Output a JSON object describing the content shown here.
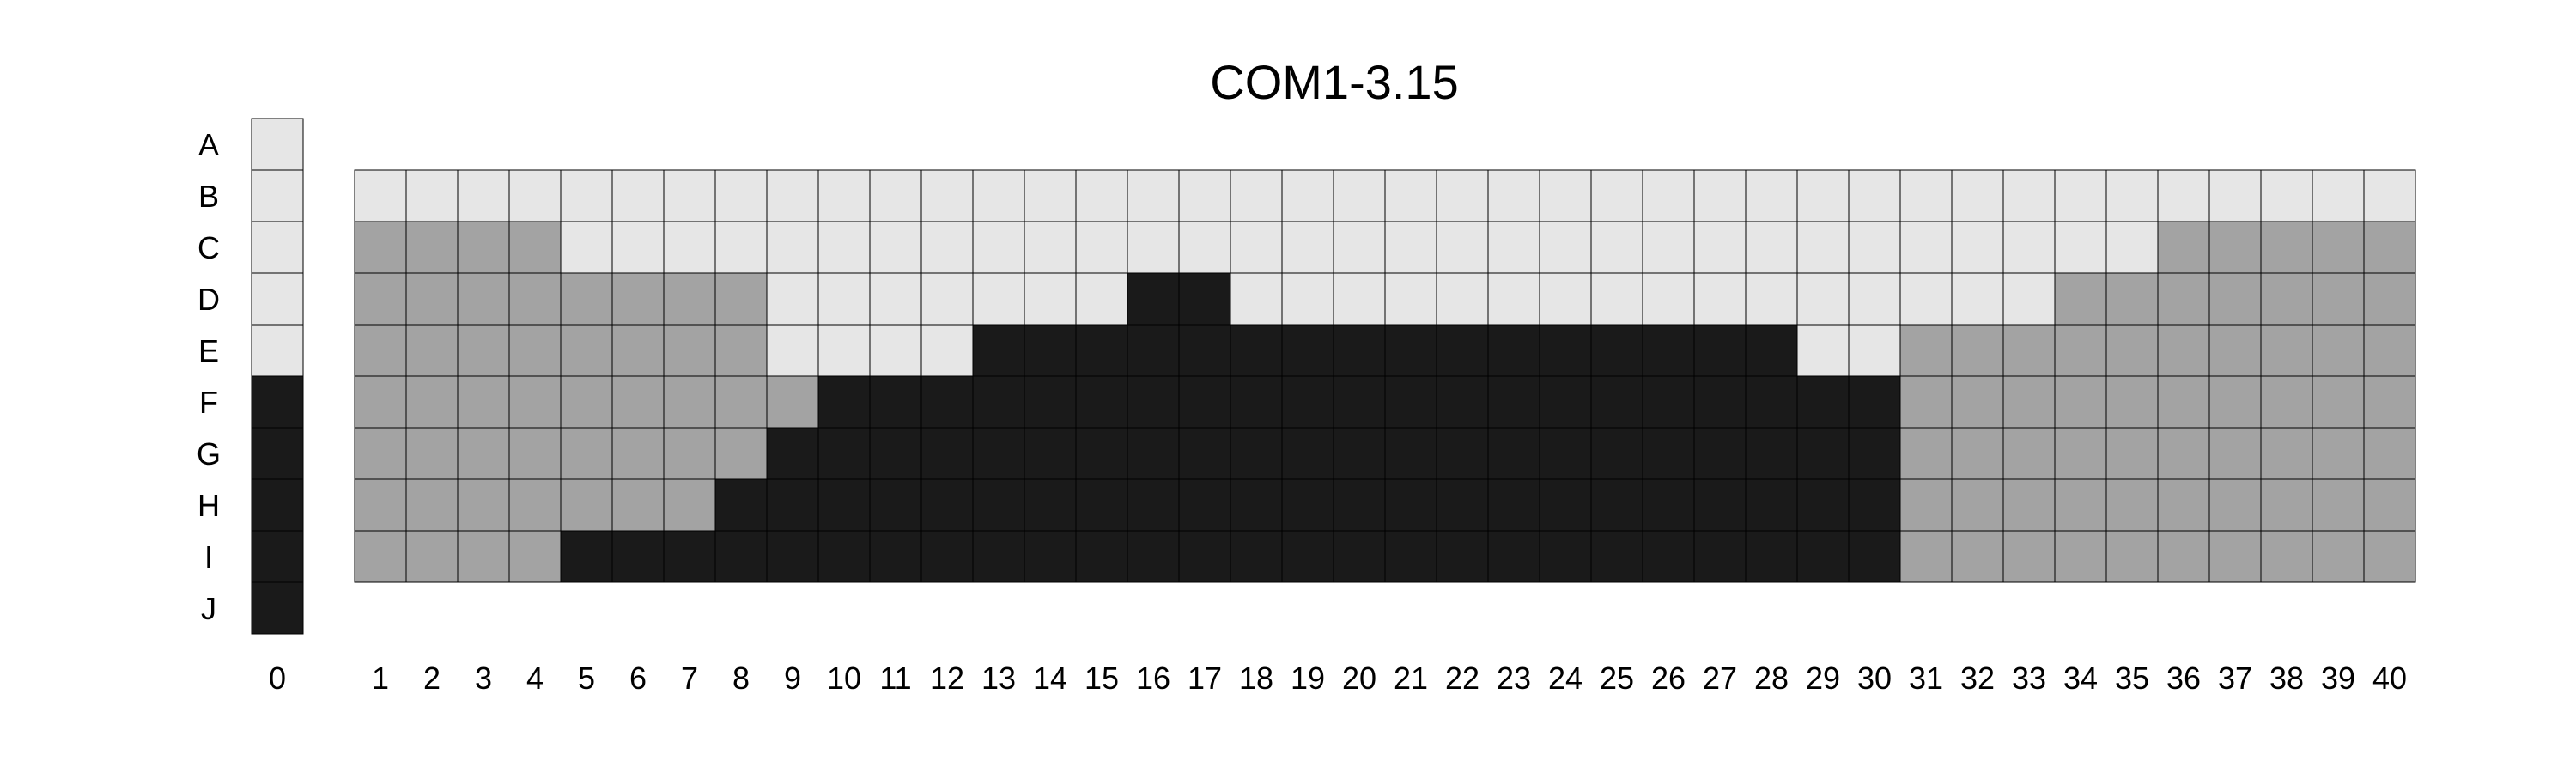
{
  "chart_data": {
    "type": "heatmap",
    "title": "COM1-3.15",
    "xlabel": "",
    "ylabel": "",
    "rows": [
      "A",
      "B",
      "C",
      "D",
      "E",
      "F",
      "G",
      "H",
      "I",
      "J"
    ],
    "columns": [
      "1",
      "2",
      "3",
      "4",
      "5",
      "6",
      "7",
      "8",
      "9",
      "10",
      "11",
      "12",
      "13",
      "14",
      "15",
      "16",
      "17",
      "18",
      "19",
      "20",
      "21",
      "22",
      "23",
      "24",
      "25",
      "26",
      "27",
      "28",
      "29",
      "30",
      "31",
      "32",
      "33",
      "34",
      "35",
      "36",
      "37",
      "38",
      "39",
      "40"
    ],
    "reference_column": {
      "label": "0",
      "rows": [
        "A",
        "B",
        "C",
        "D",
        "E",
        "F",
        "G",
        "H",
        "I",
        "J"
      ],
      "values": [
        1,
        1,
        1,
        1,
        1,
        3,
        3,
        3,
        3,
        3
      ]
    },
    "grid_rows": [
      "B",
      "C",
      "D",
      "E",
      "F",
      "G",
      "H",
      "I"
    ],
    "values": [
      [
        1,
        1,
        1,
        1,
        1,
        1,
        1,
        1,
        1,
        1,
        1,
        1,
        1,
        1,
        1,
        1,
        1,
        1,
        1,
        1,
        1,
        1,
        1,
        1,
        1,
        1,
        1,
        1,
        1,
        1,
        1,
        1,
        1,
        1,
        1,
        1,
        1,
        1,
        1,
        1
      ],
      [
        2,
        2,
        2,
        2,
        1,
        1,
        1,
        1,
        1,
        1,
        1,
        1,
        1,
        1,
        1,
        1,
        1,
        1,
        1,
        1,
        1,
        1,
        1,
        1,
        1,
        1,
        1,
        1,
        1,
        1,
        1,
        1,
        1,
        1,
        1,
        2,
        2,
        2,
        2,
        2
      ],
      [
        2,
        2,
        2,
        2,
        2,
        2,
        2,
        2,
        1,
        1,
        1,
        1,
        1,
        1,
        1,
        3,
        3,
        1,
        1,
        1,
        1,
        1,
        1,
        1,
        1,
        1,
        1,
        1,
        1,
        1,
        1,
        1,
        1,
        2,
        2,
        2,
        2,
        2,
        2,
        2
      ],
      [
        2,
        2,
        2,
        2,
        2,
        2,
        2,
        2,
        1,
        1,
        1,
        1,
        3,
        3,
        3,
        3,
        3,
        3,
        3,
        3,
        3,
        3,
        3,
        3,
        3,
        3,
        3,
        3,
        1,
        1,
        2,
        2,
        2,
        2,
        2,
        2,
        2,
        2,
        2,
        2
      ],
      [
        2,
        2,
        2,
        2,
        2,
        2,
        2,
        2,
        2,
        3,
        3,
        3,
        3,
        3,
        3,
        3,
        3,
        3,
        3,
        3,
        3,
        3,
        3,
        3,
        3,
        3,
        3,
        3,
        3,
        3,
        2,
        2,
        2,
        2,
        2,
        2,
        2,
        2,
        2,
        2
      ],
      [
        2,
        2,
        2,
        2,
        2,
        2,
        2,
        2,
        3,
        3,
        3,
        3,
        3,
        3,
        3,
        3,
        3,
        3,
        3,
        3,
        3,
        3,
        3,
        3,
        3,
        3,
        3,
        3,
        3,
        3,
        2,
        2,
        2,
        2,
        2,
        2,
        2,
        2,
        2,
        2
      ],
      [
        2,
        2,
        2,
        2,
        2,
        2,
        2,
        3,
        3,
        3,
        3,
        3,
        3,
        3,
        3,
        3,
        3,
        3,
        3,
        3,
        3,
        3,
        3,
        3,
        3,
        3,
        3,
        3,
        3,
        3,
        2,
        2,
        2,
        2,
        2,
        2,
        2,
        2,
        2,
        2
      ],
      [
        2,
        2,
        2,
        2,
        3,
        3,
        3,
        3,
        3,
        3,
        3,
        3,
        3,
        3,
        3,
        3,
        3,
        3,
        3,
        3,
        3,
        3,
        3,
        3,
        3,
        3,
        3,
        3,
        3,
        3,
        2,
        2,
        2,
        2,
        2,
        2,
        2,
        2,
        2,
        2
      ]
    ],
    "colors": {
      "1": "#e6e6e6",
      "2": "#a3a3a3",
      "3": "#1a1a1a"
    },
    "grid": true,
    "legend": "none"
  }
}
